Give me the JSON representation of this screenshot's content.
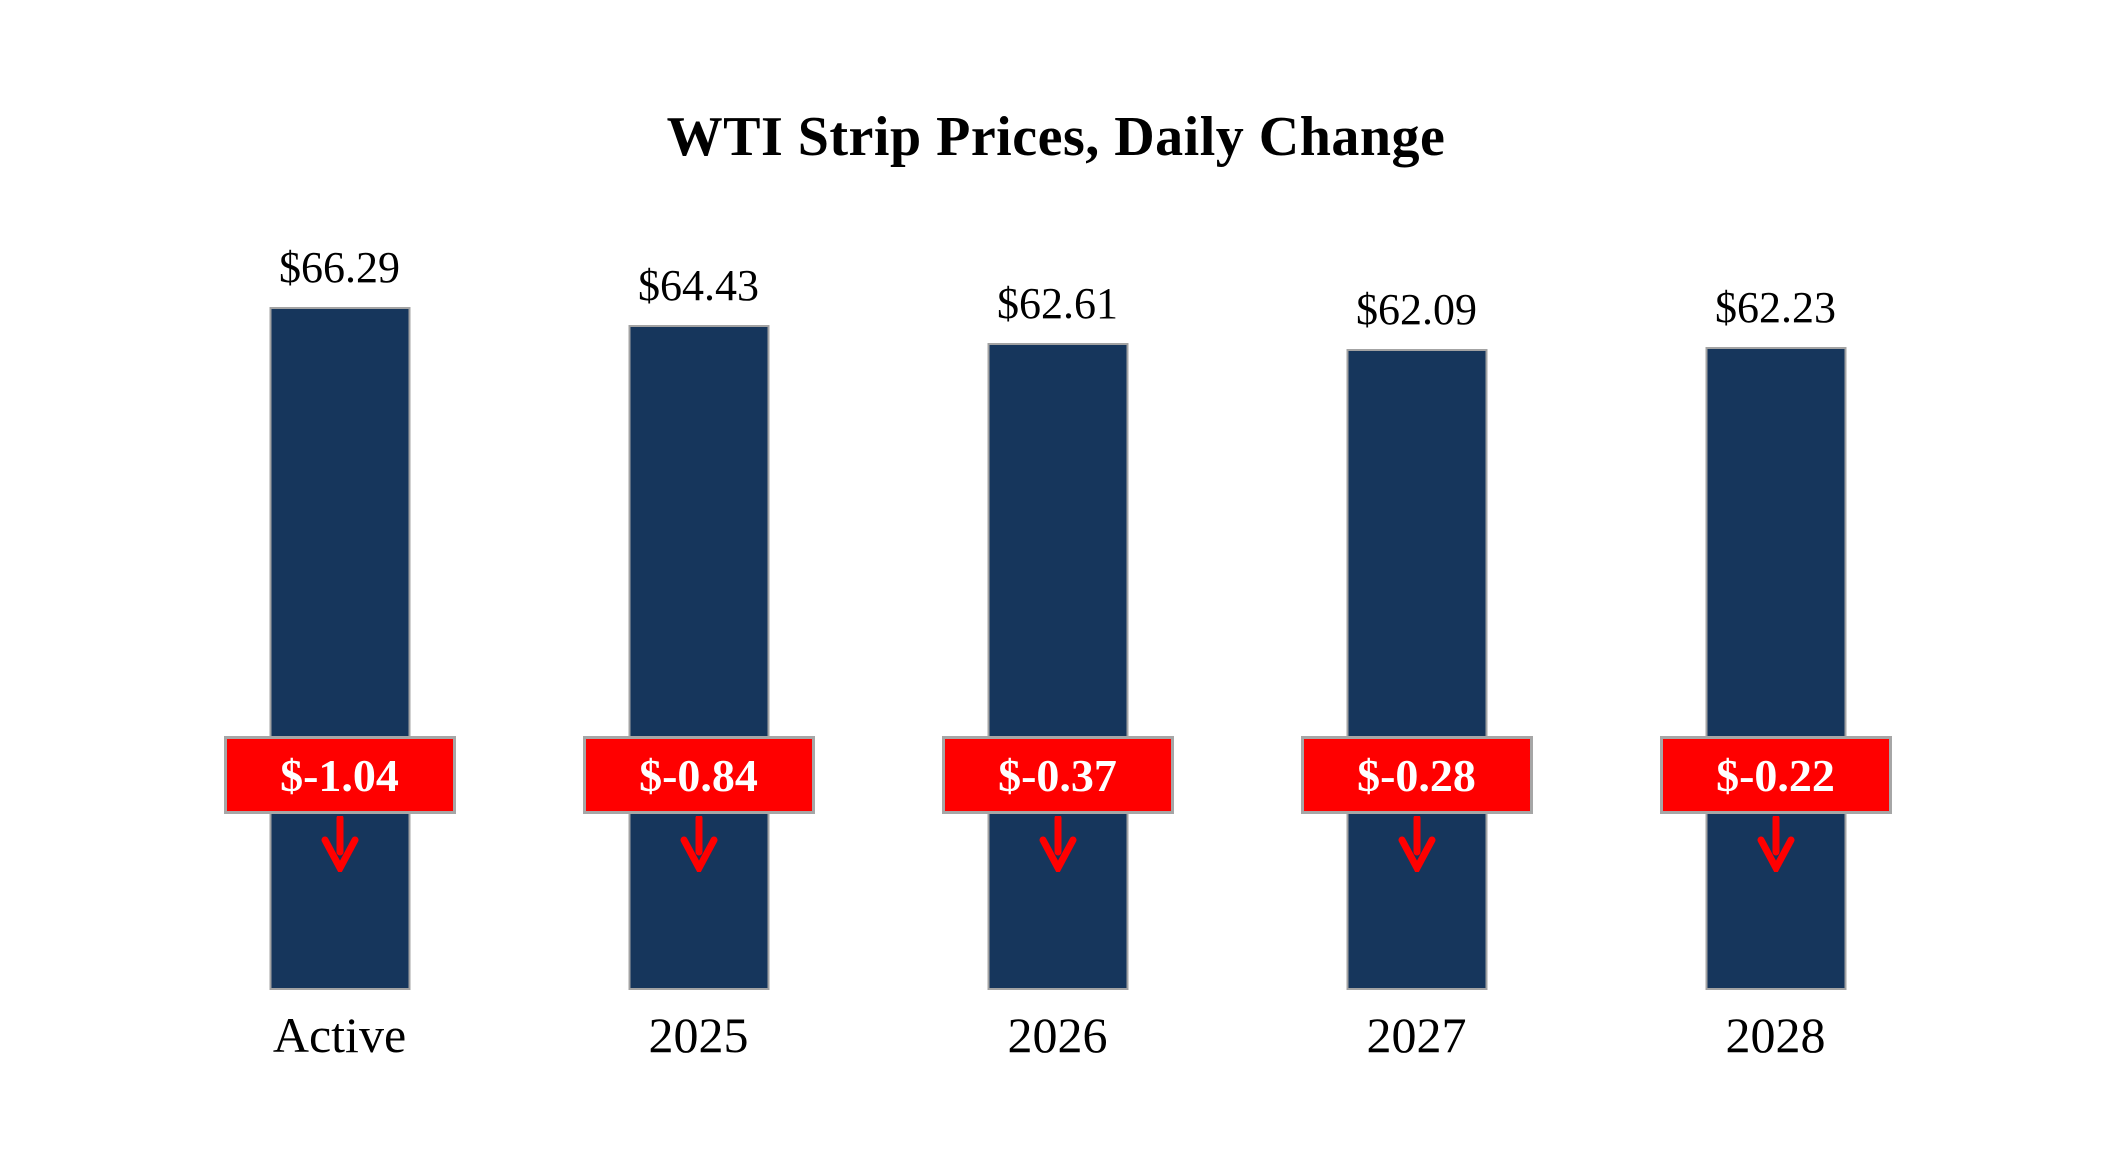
{
  "title": "WTI Strip Prices, Daily Change",
  "chart_data": {
    "type": "bar",
    "title": "WTI Strip Prices, Daily Change",
    "categories": [
      "Active",
      "2025",
      "2026",
      "2027",
      "2028"
    ],
    "series": [
      {
        "name": "WTI Strip Price",
        "values": [
          66.29,
          64.43,
          62.61,
          62.09,
          62.23
        ]
      },
      {
        "name": "Daily Change",
        "values": [
          -1.04,
          -0.84,
          -0.37,
          -0.28,
          -0.22
        ]
      }
    ],
    "price_labels": [
      "$66.29",
      "$64.43",
      "$62.61",
      "$62.09",
      "$62.23"
    ],
    "change_labels": [
      "$-1.04",
      "$-0.84",
      "$-0.37",
      "$-0.28",
      "$-0.22"
    ],
    "ylim": [
      0,
      70
    ],
    "grid": false,
    "legend_position": "none",
    "colors": {
      "bar": "#16365C",
      "badge": "#FF0000",
      "badge_text": "#FFFFFF",
      "badge_border": "#A6A6A6",
      "arrow": "#FF0000"
    }
  }
}
